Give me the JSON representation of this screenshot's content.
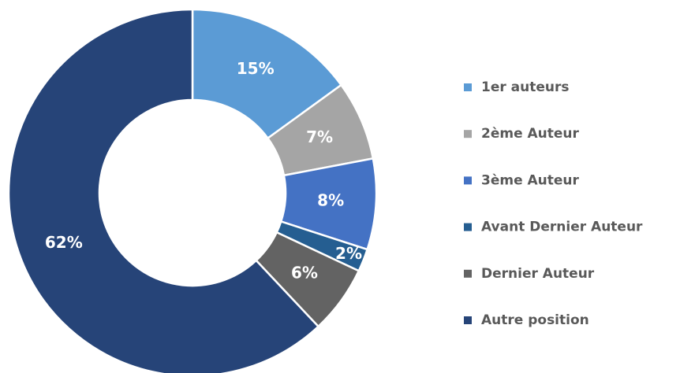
{
  "chart_data": {
    "type": "pie",
    "categories": [
      "1er auteurs",
      "2ème Auteur",
      "3ème Auteur",
      "Avant Dernier Auteur",
      "Dernier Auteur",
      "Autre position"
    ],
    "values": [
      15,
      7,
      8,
      2,
      6,
      62
    ],
    "value_labels": [
      "15%",
      "7%",
      "8%",
      "2%",
      "6%",
      "62%"
    ],
    "colors": [
      "#5b9bd5",
      "#a5a5a5",
      "#4472c4",
      "#255e91",
      "#636363",
      "#264478"
    ],
    "donut": true,
    "legend": "right"
  }
}
